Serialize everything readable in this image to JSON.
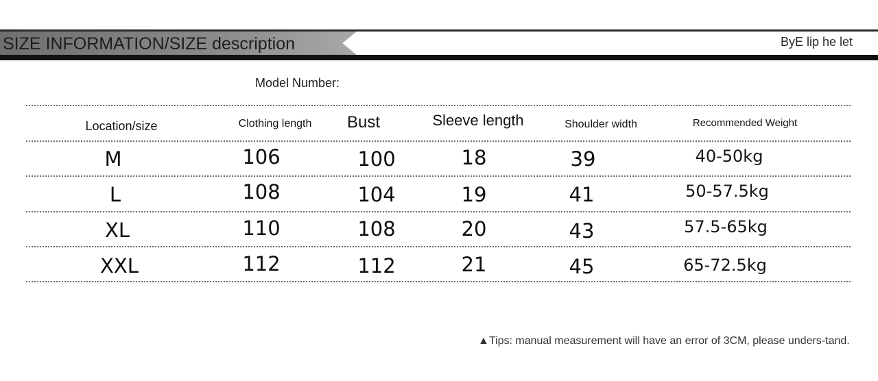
{
  "header": {
    "title": "SIZE INFORMATION/SIZE description",
    "right_text": "ByE lip he let"
  },
  "model_number_label": "Model Number:",
  "table": {
    "columns": [
      "Location/size",
      "Clothing length",
      "Bust",
      "Sleeve length",
      "Shoulder width",
      "Recommended Weight"
    ],
    "rows": [
      {
        "size": "M",
        "clothing_length": "106",
        "bust": "100",
        "sleeve_length": "18",
        "shoulder_width": "39",
        "weight": "40-50kg"
      },
      {
        "size": "L",
        "clothing_length": "108",
        "bust": "104",
        "sleeve_length": "19",
        "shoulder_width": "41",
        "weight": "50-57.5kg"
      },
      {
        "size": "XL",
        "clothing_length": "110",
        "bust": "108",
        "sleeve_length": "20",
        "shoulder_width": "43",
        "weight": "57.5-65kg"
      },
      {
        "size": "XXL",
        "clothing_length": "112",
        "bust": "112",
        "sleeve_length": "21",
        "shoulder_width": "45",
        "weight": "65-72.5kg"
      }
    ]
  },
  "tips": "▲Tips: manual measurement will have an error of 3CM, please unders-tand."
}
